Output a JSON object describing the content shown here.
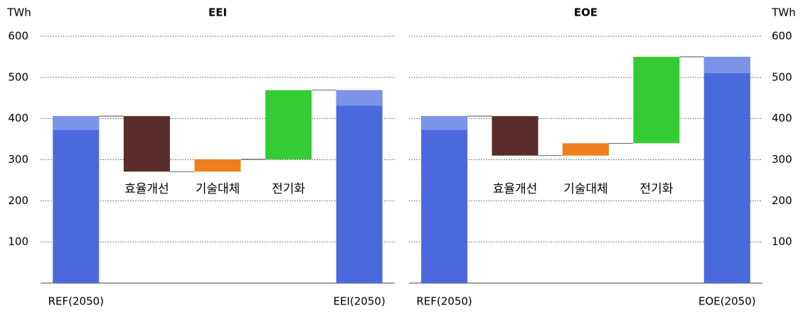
{
  "chart_data": [
    {
      "type": "waterfall",
      "title": "EEI",
      "yunit": "TWh",
      "y_axis_side": "left",
      "categories": [
        "REF(2050)",
        "효율개선",
        "기술대체",
        "전기화",
        "EEI(2050)"
      ],
      "values": [
        406,
        -135,
        30,
        168,
        469
      ],
      "light_segment": [
        34,
        null,
        null,
        null,
        38
      ],
      "colors": [
        "#4a69dd",
        "#5c2b2b",
        "#f07f1e",
        "#33cc33",
        "#4a69dd"
      ],
      "light_color": "#7b94e8",
      "ylim": [
        0,
        600
      ],
      "yticks": [
        100,
        200,
        300,
        400,
        500,
        600
      ],
      "grid": true
    },
    {
      "type": "waterfall",
      "title": "EOE",
      "yunit": "TWh",
      "y_axis_side": "right",
      "categories": [
        "REF(2050)",
        "효율개선",
        "기술대체",
        "전기화",
        "EOE(2050)"
      ],
      "values": [
        406,
        -96,
        30,
        210,
        550
      ],
      "light_segment": [
        34,
        null,
        null,
        null,
        40
      ],
      "colors": [
        "#4a69dd",
        "#5c2b2b",
        "#f07f1e",
        "#33cc33",
        "#4a69dd"
      ],
      "light_color": "#7b94e8",
      "ylim": [
        0,
        600
      ],
      "yticks": [
        100,
        200,
        300,
        400,
        500,
        600
      ],
      "grid": true
    }
  ]
}
